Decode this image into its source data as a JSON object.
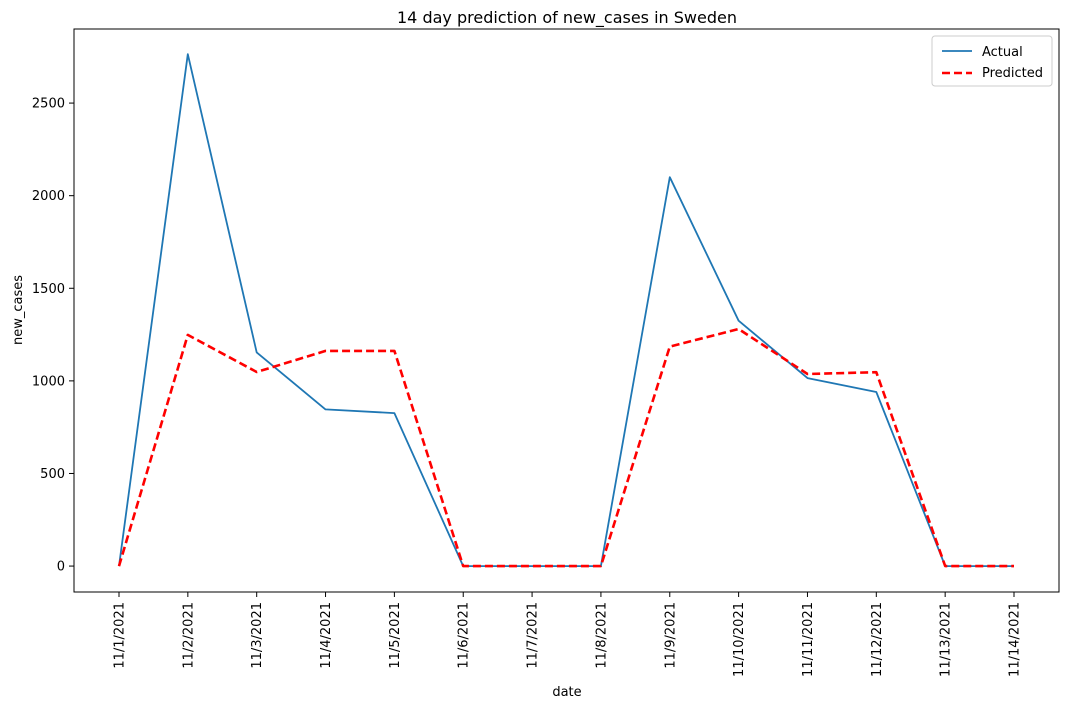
{
  "chart_data": {
    "type": "line",
    "title": "14 day prediction of new_cases in Sweden",
    "xlabel": "date",
    "ylabel": "new_cases",
    "categories": [
      "11/1/2021",
      "11/2/2021",
      "11/3/2021",
      "11/4/2021",
      "11/5/2021",
      "11/6/2021",
      "11/7/2021",
      "11/8/2021",
      "11/9/2021",
      "11/10/2021",
      "11/11/2021",
      "11/12/2021",
      "11/13/2021",
      "11/14/2021"
    ],
    "ylim": [
      -140,
      2900
    ],
    "yticks": [
      0,
      500,
      1000,
      1500,
      2000,
      2500
    ],
    "legend_position": "top-right",
    "grid": false,
    "series": [
      {
        "name": "Actual",
        "color": "#1f77b4",
        "style": "solid",
        "values": [
          0,
          2764,
          1154,
          846,
          826,
          0,
          0,
          0,
          2100,
          1325,
          1015,
          940,
          0,
          0
        ]
      },
      {
        "name": "Predicted",
        "color": "#ff0000",
        "style": "dashed",
        "values": [
          0,
          1248,
          1048,
          1162,
          1162,
          0,
          0,
          0,
          1185,
          1280,
          1037,
          1047,
          0,
          0
        ]
      }
    ]
  }
}
